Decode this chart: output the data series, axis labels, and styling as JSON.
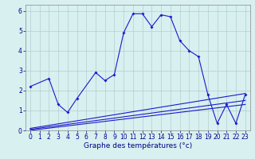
{
  "xlabel": "Graphe des températures (°c)",
  "x": [
    0,
    1,
    2,
    3,
    4,
    5,
    6,
    7,
    8,
    9,
    10,
    11,
    12,
    13,
    14,
    15,
    16,
    17,
    18,
    19,
    20,
    21,
    22,
    23
  ],
  "line1": [
    2.2,
    null,
    2.6,
    1.3,
    0.9,
    1.6,
    null,
    2.9,
    2.5,
    2.8,
    4.9,
    5.85,
    5.85,
    5.2,
    5.8,
    5.7,
    4.5,
    4.0,
    3.7,
    1.8,
    0.35,
    1.3,
    0.35,
    1.8
  ],
  "line3": [
    [
      0,
      0.1
    ],
    [
      23,
      1.85
    ]
  ],
  "line4": [
    [
      0,
      0.05
    ],
    [
      23,
      1.5
    ]
  ],
  "line5": [
    [
      0,
      0.0
    ],
    [
      23,
      1.3
    ]
  ],
  "ylim": [
    0,
    6.3
  ],
  "xlim": [
    -0.5,
    23.5
  ],
  "yticks": [
    0,
    1,
    2,
    3,
    4,
    5,
    6
  ],
  "xticks": [
    0,
    1,
    2,
    3,
    4,
    5,
    6,
    7,
    8,
    9,
    10,
    11,
    12,
    13,
    14,
    15,
    16,
    17,
    18,
    19,
    20,
    21,
    22,
    23
  ],
  "bg_color": "#d8f0f0",
  "line_color": "#1a1acc",
  "grid_color": "#b0d0d0",
  "xlabel_color": "#000088",
  "tick_color": "#000088",
  "tick_fontsize": 5.5,
  "xlabel_fontsize": 6.5,
  "linewidth": 0.8,
  "markersize": 2.0
}
